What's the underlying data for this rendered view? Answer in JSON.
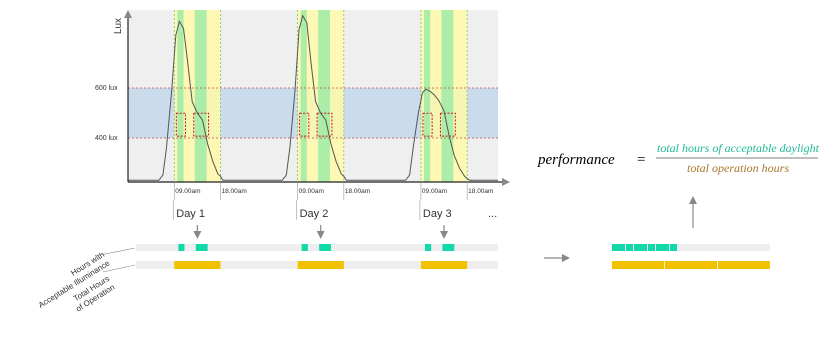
{
  "chart_data": {
    "type": "line",
    "ylabel": "Lux",
    "thresholds": [
      {
        "value": 600,
        "label": "600 lux"
      },
      {
        "value": 400,
        "label": "400 lux"
      }
    ],
    "y_range": [
      0,
      1500
    ],
    "x_range_hours": [
      0,
      72
    ],
    "days": [
      {
        "label": "Day 1",
        "start_label": "09.00am",
        "end_label": "18.00am"
      },
      {
        "label": "Day 2",
        "start_label": "09.00am",
        "end_label": "18.00am"
      },
      {
        "label": "Day 3",
        "start_label": "09.00am",
        "end_label": "18.00am"
      }
    ],
    "more_label": "...",
    "series": [
      {
        "values": [
          [
            0,
            15
          ],
          [
            6,
            15
          ],
          [
            6.8,
            60
          ],
          [
            7.5,
            300
          ],
          [
            8.5,
            800
          ],
          [
            9.3,
            1280
          ],
          [
            10,
            1400
          ],
          [
            10.8,
            1340
          ],
          [
            11.6,
            1050
          ],
          [
            12.5,
            700
          ],
          [
            13.5,
            600
          ],
          [
            14.5,
            540
          ],
          [
            15.5,
            330
          ],
          [
            16.5,
            180
          ],
          [
            17.5,
            70
          ],
          [
            18,
            50
          ],
          [
            18.5,
            15
          ],
          [
            24,
            15
          ],
          [
            30,
            15
          ],
          [
            30.8,
            60
          ],
          [
            31.5,
            300
          ],
          [
            32.5,
            800
          ],
          [
            33.3,
            1330
          ],
          [
            34,
            1450
          ],
          [
            34.8,
            1390
          ],
          [
            35.6,
            1050
          ],
          [
            36.5,
            700
          ],
          [
            37.5,
            600
          ],
          [
            38.5,
            540
          ],
          [
            39.5,
            330
          ],
          [
            40.5,
            180
          ],
          [
            41.5,
            70
          ],
          [
            42,
            50
          ],
          [
            42.5,
            15
          ],
          [
            48,
            15
          ],
          [
            54,
            15
          ],
          [
            54.8,
            60
          ],
          [
            55.5,
            300
          ],
          [
            56.5,
            600
          ],
          [
            57.3,
            780
          ],
          [
            58,
            810
          ],
          [
            58.8,
            790
          ],
          [
            59.6,
            760
          ],
          [
            60.5,
            710
          ],
          [
            61.5,
            620
          ],
          [
            62.5,
            400
          ],
          [
            63.5,
            230
          ],
          [
            64.5,
            120
          ],
          [
            65.5,
            50
          ],
          [
            66,
            30
          ],
          [
            66.5,
            15
          ],
          [
            72,
            15
          ]
        ]
      }
    ]
  },
  "bars": {
    "acceptable_label": "Hours with Acceptable Illuminance",
    "operation_label": "Total Hours of Operation",
    "acceptable_color": "#12D9A8",
    "operation_color": "#F2C200"
  },
  "formula": {
    "lhs": "performance",
    "equals": "=",
    "numerator": "total hours of acceptable daylight",
    "denominator": "total operation hours",
    "numerator_color": "#1FB999",
    "denominator_color": "#A8782A"
  }
}
